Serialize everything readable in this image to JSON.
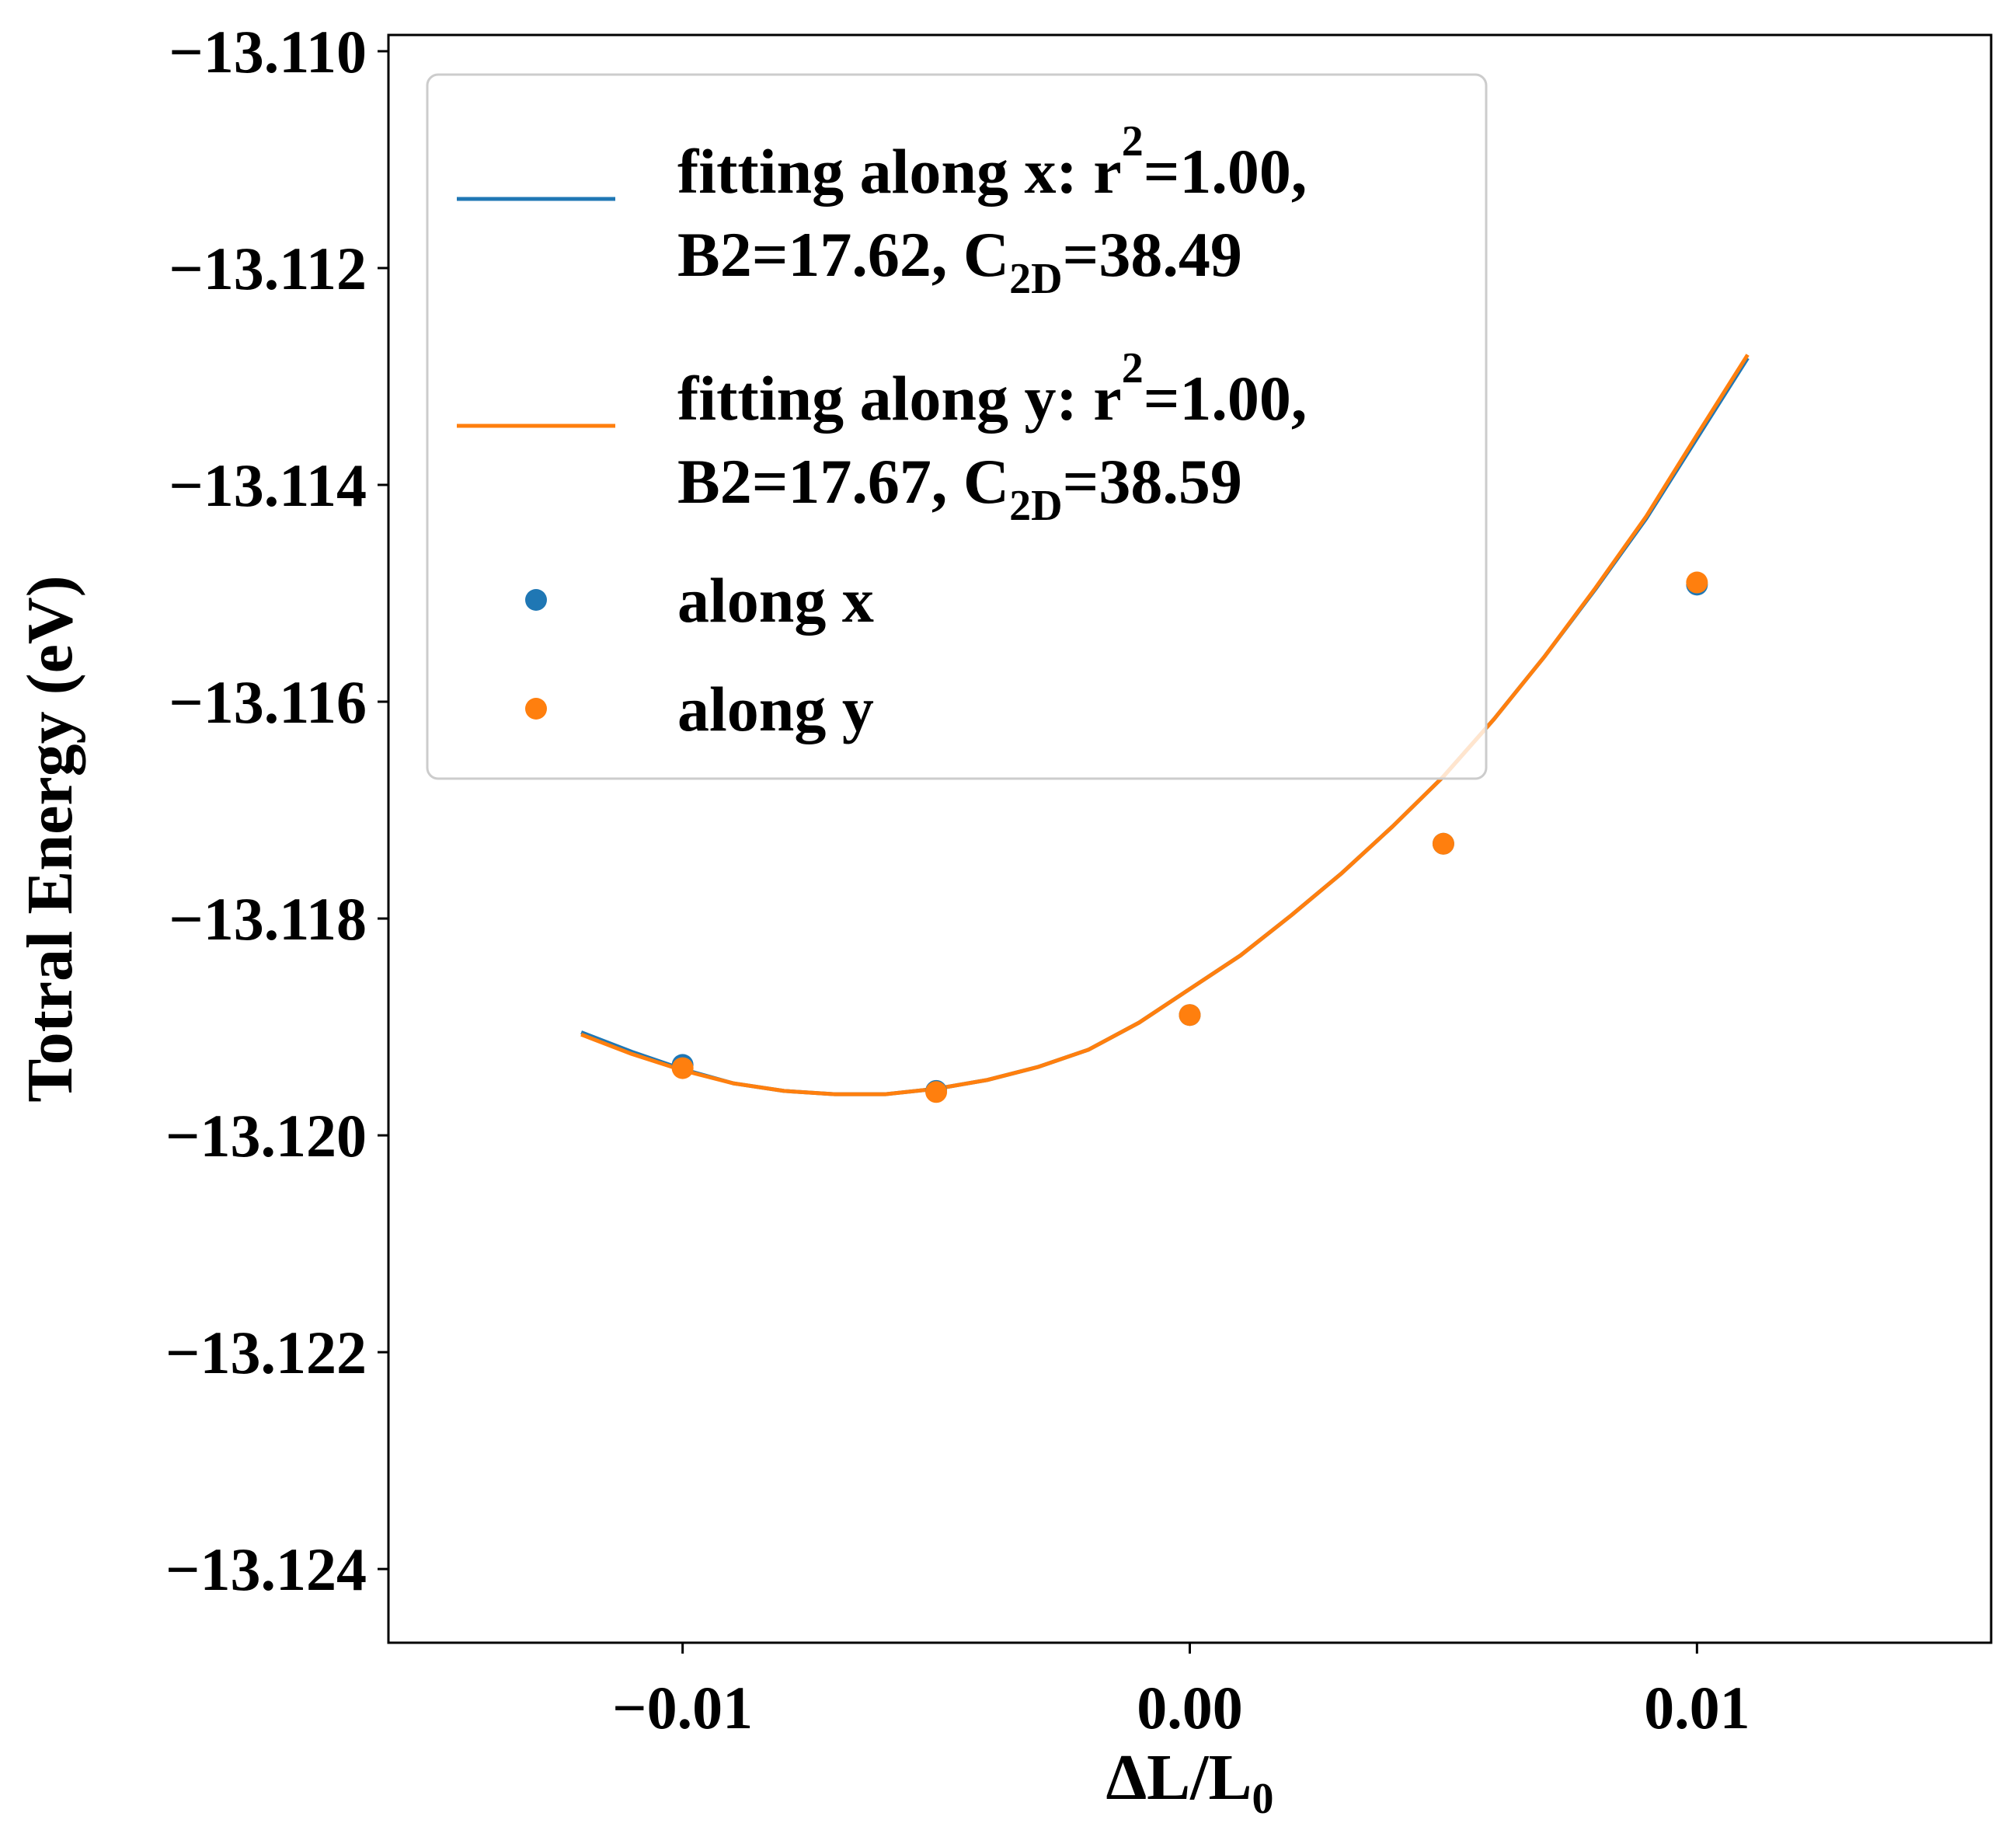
{
  "chart_data": {
    "type": "line",
    "xlabel": "ΔL/L",
    "xlabel_sub": "0",
    "ylabel": "Totral Energy (eV)",
    "xlim": [
      -0.0158,
      0.0158
    ],
    "ylim": [
      -13.12468,
      -13.10985
    ],
    "x_ticks": [
      -0.01,
      0.0,
      0.01
    ],
    "x_tick_labels": [
      "−0.01",
      "0.00",
      "0.01"
    ],
    "y_ticks": [
      -13.11,
      -13.112,
      -13.114,
      -13.116,
      -13.118,
      -13.12,
      -13.122,
      -13.124
    ],
    "y_tick_labels": [
      "−13.110",
      "−13.112",
      "−13.114",
      "−13.116",
      "−13.118",
      "−13.120",
      "−13.122",
      "−13.124"
    ],
    "grid": false,
    "legend_position": "top-left",
    "series": [
      {
        "name": "fitting along x",
        "kind": "line",
        "color": "#1f77b4",
        "x": [
          -0.012,
          -0.011,
          -0.01,
          -0.009,
          -0.008,
          -0.007,
          -0.006,
          -0.005,
          -0.004,
          -0.003,
          -0.002,
          -0.001,
          0.0,
          0.001,
          0.002,
          0.003,
          0.004,
          0.005,
          0.006,
          0.007,
          0.008,
          0.009,
          0.01,
          0.011
        ],
        "y": [
          -13.11905,
          -13.11923,
          -13.11939,
          -13.11952,
          -13.11959,
          -13.11962,
          -13.11962,
          -13.11957,
          -13.11949,
          -13.11937,
          -13.11921,
          -13.11896,
          -13.11865,
          -13.11834,
          -13.11797,
          -13.11758,
          -13.11715,
          -13.11669,
          -13.11616,
          -13.11558,
          -13.11496,
          -13.11431,
          -13.11357,
          -13.11283
        ]
      },
      {
        "name": "fitting along y",
        "kind": "line",
        "color": "#ff7f0e",
        "x": [
          -0.012,
          -0.011,
          -0.01,
          -0.009,
          -0.008,
          -0.007,
          -0.006,
          -0.005,
          -0.004,
          -0.003,
          -0.002,
          -0.001,
          0.0,
          0.001,
          0.002,
          0.003,
          0.004,
          0.005,
          0.006,
          0.007,
          0.008,
          0.009,
          0.01,
          0.011
        ],
        "y": [
          -13.11907,
          -13.11925,
          -13.1194,
          -13.11952,
          -13.11959,
          -13.11962,
          -13.11962,
          -13.11957,
          -13.11949,
          -13.11937,
          -13.11921,
          -13.11896,
          -13.11865,
          -13.11834,
          -13.11797,
          -13.11758,
          -13.11715,
          -13.11669,
          -13.11616,
          -13.11558,
          -13.11495,
          -13.11429,
          -13.11354,
          -13.1128
        ]
      },
      {
        "name": "along x",
        "kind": "scatter",
        "color": "#1f77b4",
        "x": [
          -0.01,
          -0.005,
          0.0,
          0.005,
          0.01
        ],
        "y": [
          -13.11935,
          -13.11959,
          -13.11889,
          -13.11731,
          -13.11492
        ]
      },
      {
        "name": "along y",
        "kind": "scatter",
        "color": "#ff7f0e",
        "x": [
          -0.01,
          -0.005,
          0.0,
          0.005,
          0.01
        ],
        "y": [
          -13.11938,
          -13.1196,
          -13.11889,
          -13.11731,
          -13.1149
        ]
      }
    ],
    "legend": [
      {
        "line1": "fitting along x: r",
        "line1_sup": "2",
        "line1_tail": "=1.00,",
        "line2_a": "B2=17.62, C",
        "line2_sub": "2D",
        "line2_b": "=38.49",
        "color": "#1f77b4",
        "kind": "line"
      },
      {
        "line1": "fitting along y: r",
        "line1_sup": "2",
        "line1_tail": "=1.00,",
        "line2_a": "B2=17.67, C",
        "line2_sub": "2D",
        "line2_b": "=38.59",
        "color": "#ff7f0e",
        "kind": "line"
      },
      {
        "label": "along x",
        "color": "#1f77b4",
        "kind": "scatter"
      },
      {
        "label": "along y",
        "color": "#ff7f0e",
        "kind": "scatter"
      }
    ]
  }
}
